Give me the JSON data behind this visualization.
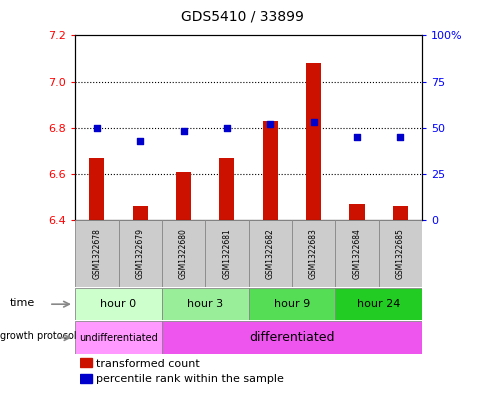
{
  "title": "GDS5410 / 33899",
  "samples": [
    "GSM1322678",
    "GSM1322679",
    "GSM1322680",
    "GSM1322681",
    "GSM1322682",
    "GSM1322683",
    "GSM1322684",
    "GSM1322685"
  ],
  "transformed_count": [
    6.67,
    6.46,
    6.61,
    6.67,
    6.83,
    7.08,
    6.47,
    6.46
  ],
  "percentile_rank": [
    50,
    43,
    48,
    50,
    52,
    53,
    45,
    45
  ],
  "ylim_left": [
    6.4,
    7.2
  ],
  "ylim_right": [
    0,
    100
  ],
  "yticks_left": [
    6.4,
    6.6,
    6.8,
    7.0,
    7.2
  ],
  "yticks_right": [
    0,
    25,
    50,
    75,
    100
  ],
  "ytick_labels_right": [
    "0",
    "25",
    "50",
    "75",
    "100%"
  ],
  "hlines": [
    6.6,
    6.8,
    7.0
  ],
  "bar_color": "#cc1100",
  "dot_color": "#0000cc",
  "bar_width": 0.35,
  "base_value": 6.4,
  "time_groups": [
    {
      "label": "hour 0",
      "s0": 0,
      "s1": 1,
      "color": "#ccffcc"
    },
    {
      "label": "hour 3",
      "s0": 2,
      "s1": 3,
      "color": "#99ee99"
    },
    {
      "label": "hour 9",
      "s0": 4,
      "s1": 5,
      "color": "#55dd55"
    },
    {
      "label": "hour 24",
      "s0": 6,
      "s1": 7,
      "color": "#22cc22"
    }
  ],
  "protocol_groups": [
    {
      "label": "undifferentiated",
      "s0": 0,
      "s1": 1,
      "color": "#ff99ff"
    },
    {
      "label": "differentiated",
      "s0": 2,
      "s1": 7,
      "color": "#ee55ee"
    }
  ],
  "sample_bg": "#cccccc",
  "legend_bar_color": "#cc1100",
  "legend_dot_color": "#0000cc",
  "legend_label_bar": "transformed count",
  "legend_label_dot": "percentile rank within the sample"
}
